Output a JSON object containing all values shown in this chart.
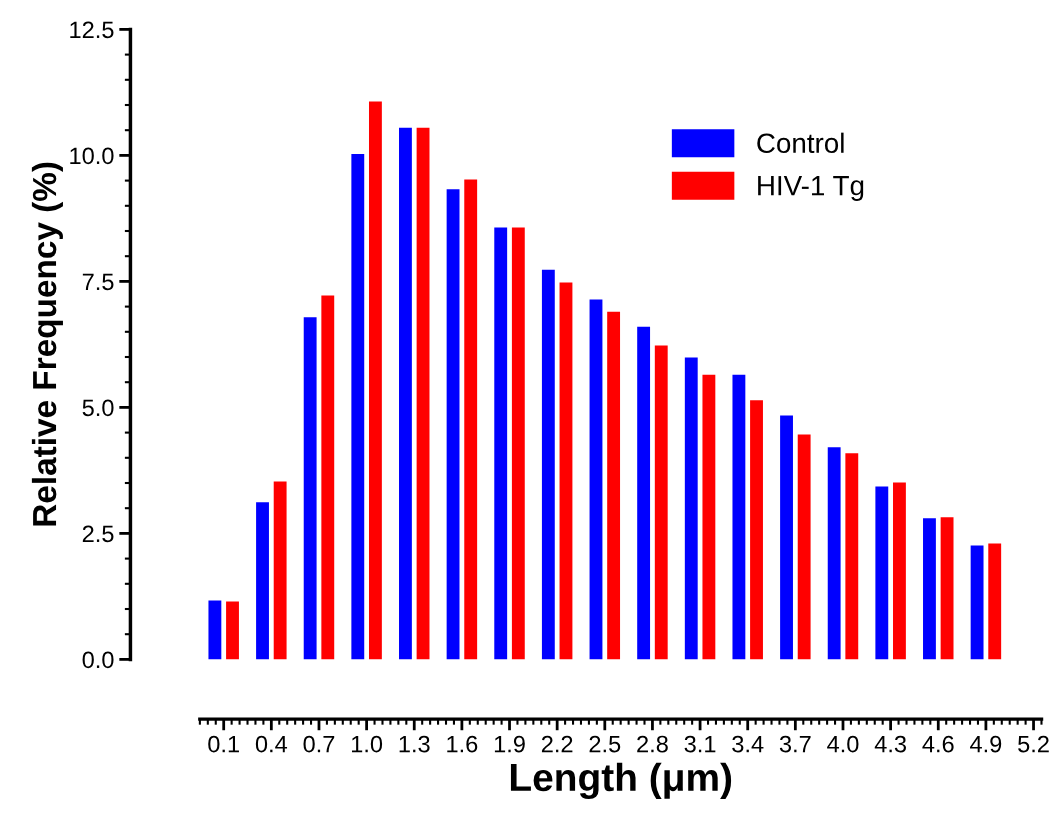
{
  "chart_data": {
    "type": "bar",
    "xlabel": "Length (μm)",
    "ylabel": "Relative Frequency (%)",
    "x": [
      0.1,
      0.4,
      0.7,
      1.0,
      1.3,
      1.6,
      1.9,
      2.2,
      2.5,
      2.8,
      3.1,
      3.4,
      3.7,
      4.0,
      4.3,
      4.6,
      4.9
    ],
    "series": [
      {
        "name": "Control",
        "color": "#0000ff",
        "values": [
          1.17,
          3.12,
          6.79,
          10.03,
          10.55,
          9.33,
          8.57,
          7.73,
          7.14,
          6.6,
          5.99,
          5.65,
          4.84,
          4.21,
          3.43,
          2.8,
          2.26
        ]
      },
      {
        "name": "HIV-1 Tg",
        "color": "#ff0000",
        "values": [
          1.15,
          3.53,
          7.22,
          11.07,
          10.55,
          9.52,
          8.57,
          7.48,
          6.9,
          6.23,
          5.65,
          5.14,
          4.46,
          4.09,
          3.51,
          2.82,
          2.3
        ]
      }
    ],
    "xlim": [
      -0.05,
      5.25
    ],
    "xticks": [
      {
        "value": 0.1,
        "label": "0.1"
      },
      {
        "value": 0.4,
        "label": "0.4"
      },
      {
        "value": 0.7,
        "label": "0.7"
      },
      {
        "value": 1.0,
        "label": "1.0"
      },
      {
        "value": 1.3,
        "label": "1.3"
      },
      {
        "value": 1.6,
        "label": "1.6"
      },
      {
        "value": 1.9,
        "label": "1.9"
      },
      {
        "value": 2.2,
        "label": "2.2"
      },
      {
        "value": 2.5,
        "label": "2.5"
      },
      {
        "value": 2.8,
        "label": "2.8"
      },
      {
        "value": 3.1,
        "label": "3.1"
      },
      {
        "value": 3.4,
        "label": "3.4"
      },
      {
        "value": 3.7,
        "label": "3.7"
      },
      {
        "value": 4.0,
        "label": "4.0"
      },
      {
        "value": 4.3,
        "label": "4.3"
      },
      {
        "value": 4.6,
        "label": "4.6"
      },
      {
        "value": 4.9,
        "label": "4.9"
      },
      {
        "value": 5.2,
        "label": "5.2"
      }
    ],
    "ylim": [
      0,
      12.5
    ],
    "yticks": [
      {
        "value": 0,
        "label": "0.0"
      },
      {
        "value": 2.5,
        "label": "2.5"
      },
      {
        "value": 5,
        "label": "5.0"
      },
      {
        "value": 7.5,
        "label": "7.5"
      },
      {
        "value": 10,
        "label": "10.0"
      },
      {
        "value": 12.5,
        "label": "12.5"
      }
    ],
    "grid": false,
    "legend": "top right"
  }
}
